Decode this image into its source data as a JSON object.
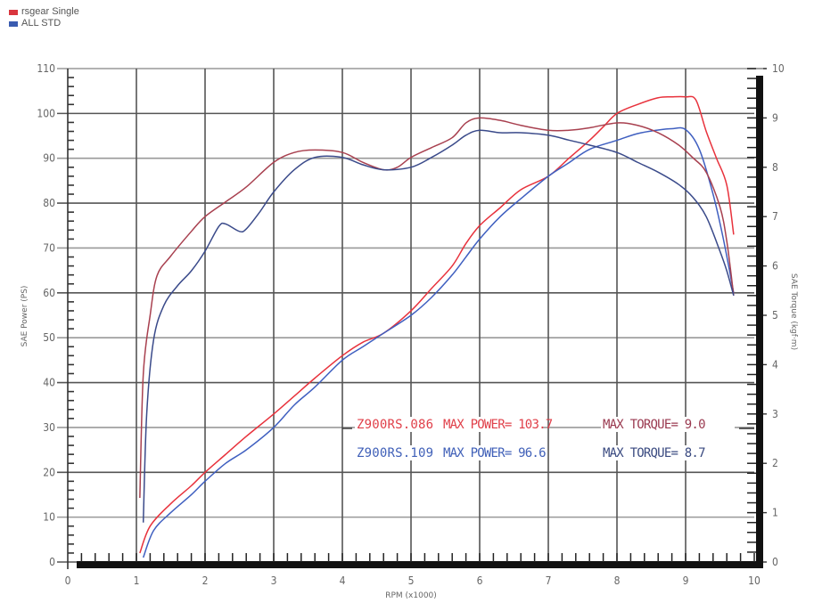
{
  "legend": {
    "items": [
      {
        "label": "rsgear Single",
        "color": "#d9363e"
      },
      {
        "label": "ALL STD",
        "color": "#3a5bb0"
      }
    ]
  },
  "axes": {
    "x_title": "RPM (x1000)",
    "y_left_title": "SAE Power (PS)",
    "y_right_title": "SAE Torque (kgf·m)",
    "x_ticks": [
      "0",
      "1",
      "2",
      "3",
      "4",
      "5",
      "6",
      "7",
      "8",
      "9",
      "10"
    ],
    "y_left_ticks": [
      "0",
      "10",
      "20",
      "30",
      "40",
      "50",
      "60",
      "70",
      "80",
      "90",
      "100",
      "110"
    ],
    "y_right_ticks": [
      "0",
      "1",
      "2",
      "3",
      "4",
      "5",
      "6",
      "7",
      "8",
      "9",
      "10"
    ]
  },
  "annotations": [
    {
      "run": "Z900RS.086",
      "power_label": "MAX POWER= 103.7",
      "torque_label": "MAX TORQUE= 9.0",
      "color": "#e0404a",
      "torque_color": "#9a3a50"
    },
    {
      "run": "Z900RS.109",
      "power_label": "MAX POWER= 96.6",
      "torque_label": "MAX TORQUE= 8.7",
      "color": "#4060b8",
      "torque_color": "#3a4a80"
    }
  ],
  "chart_data": {
    "type": "line",
    "title": "",
    "xlabel": "RPM (x1000)",
    "ylabel": "SAE Power (PS)",
    "y2label": "SAE Torque (kgf·m)",
    "xlim": [
      0,
      10
    ],
    "ylim": [
      0,
      110
    ],
    "y2lim": [
      0,
      10
    ],
    "grid": true,
    "legend_position": "top-left",
    "series": [
      {
        "name": "rsgear Single - Power (Z900RS.086)",
        "axis": "left",
        "color": "#e8323c",
        "x": [
          1.05,
          1.2,
          1.5,
          1.8,
          2.0,
          2.3,
          2.6,
          3.0,
          3.3,
          3.6,
          4.0,
          4.3,
          4.6,
          5.0,
          5.3,
          5.6,
          5.8,
          6.0,
          6.3,
          6.6,
          7.0,
          7.3,
          7.6,
          7.8,
          8.0,
          8.3,
          8.6,
          8.8,
          9.0,
          9.15,
          9.3,
          9.45,
          9.6,
          9.7
        ],
        "y": [
          2,
          8,
          13,
          17,
          20,
          24,
          28,
          33,
          37,
          41,
          46,
          49,
          51,
          56,
          61,
          66,
          71,
          75,
          79,
          83,
          86,
          90,
          94,
          97,
          100,
          102,
          103.5,
          103.7,
          103.7,
          103,
          96,
          90,
          84,
          73
        ]
      },
      {
        "name": "ALL STD - Power (Z900RS.109)",
        "axis": "left",
        "color": "#3f5fc0",
        "x": [
          1.1,
          1.25,
          1.5,
          1.8,
          2.0,
          2.3,
          2.6,
          3.0,
          3.3,
          3.6,
          4.0,
          4.3,
          4.6,
          5.0,
          5.3,
          5.6,
          5.8,
          6.0,
          6.3,
          6.6,
          7.0,
          7.3,
          7.6,
          8.0,
          8.3,
          8.6,
          8.8,
          9.0,
          9.2,
          9.4,
          9.55,
          9.7
        ],
        "y": [
          1,
          7,
          11,
          15,
          18,
          22,
          25,
          30,
          35,
          39,
          45,
          48,
          51,
          55,
          59,
          64,
          68,
          72,
          77,
          81,
          86,
          89,
          92,
          94,
          95.5,
          96.3,
          96.6,
          96.4,
          92,
          82,
          72,
          60
        ]
      },
      {
        "name": "rsgear Single - Torque (Z900RS.086)",
        "axis": "right",
        "color": "#a8404f",
        "x": [
          1.05,
          1.1,
          1.2,
          1.3,
          1.5,
          1.8,
          2.0,
          2.3,
          2.6,
          3.0,
          3.3,
          3.6,
          4.0,
          4.3,
          4.6,
          4.8,
          5.0,
          5.3,
          5.6,
          5.8,
          6.0,
          6.3,
          6.6,
          7.0,
          7.3,
          7.6,
          8.0,
          8.3,
          8.6,
          8.9,
          9.1,
          9.3,
          9.5,
          9.6,
          9.7
        ],
        "y": [
          1.3,
          3.8,
          5.0,
          5.8,
          6.2,
          6.7,
          7.0,
          7.3,
          7.6,
          8.1,
          8.3,
          8.35,
          8.3,
          8.1,
          7.95,
          8.0,
          8.2,
          8.4,
          8.6,
          8.9,
          9.0,
          8.95,
          8.85,
          8.75,
          8.75,
          8.8,
          8.9,
          8.85,
          8.7,
          8.45,
          8.2,
          7.9,
          7.2,
          6.5,
          5.4
        ]
      },
      {
        "name": "ALL STD - Torque (Z900RS.109)",
        "axis": "right",
        "color": "#3a4a8a",
        "x": [
          1.1,
          1.15,
          1.25,
          1.4,
          1.6,
          1.8,
          2.0,
          2.2,
          2.3,
          2.5,
          2.6,
          2.8,
          3.0,
          3.3,
          3.6,
          4.0,
          4.3,
          4.6,
          5.0,
          5.3,
          5.6,
          5.8,
          6.0,
          6.3,
          6.6,
          7.0,
          7.3,
          7.6,
          8.0,
          8.3,
          8.6,
          8.9,
          9.1,
          9.3,
          9.5,
          9.6,
          9.7
        ],
        "y": [
          0.8,
          3.0,
          4.5,
          5.2,
          5.6,
          5.9,
          6.3,
          6.8,
          6.85,
          6.7,
          6.75,
          7.1,
          7.5,
          7.95,
          8.2,
          8.2,
          8.05,
          7.95,
          8.0,
          8.2,
          8.45,
          8.65,
          8.75,
          8.7,
          8.7,
          8.65,
          8.55,
          8.45,
          8.3,
          8.1,
          7.9,
          7.65,
          7.4,
          7.0,
          6.3,
          5.9,
          5.4
        ]
      }
    ]
  }
}
